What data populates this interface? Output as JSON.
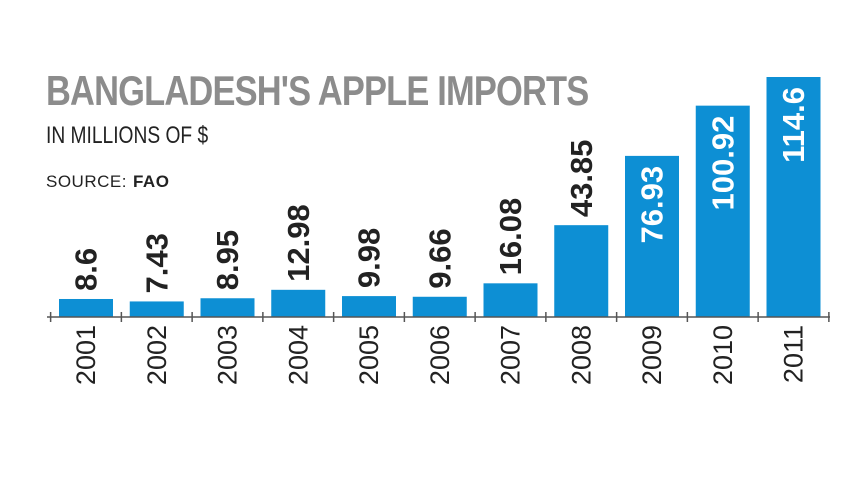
{
  "header": {
    "title": "BANGLADESH'S APPLE IMPORTS",
    "subtitle": "IN MILLIONS OF $",
    "source_label": "SOURCE:",
    "source_value": "FAO"
  },
  "colors": {
    "bar": "#0d8fd4",
    "label_dark": "#222222",
    "label_light": "#ffffff",
    "axis": "#555555",
    "title": "#8c8c8c"
  },
  "chart_data": {
    "type": "bar",
    "title": "BANGLADESH'S APPLE IMPORTS",
    "subtitle": "IN MILLIONS OF $",
    "source": "FAO",
    "categories": [
      "2001",
      "2002",
      "2003",
      "2004",
      "2005",
      "2006",
      "2007",
      "2008",
      "2009",
      "2010",
      "2011"
    ],
    "values": [
      8.6,
      7.43,
      8.95,
      12.98,
      9.98,
      9.66,
      16.08,
      43.85,
      76.93,
      100.92,
      114.6
    ],
    "value_labels": [
      "8.6",
      "7.43",
      "8.95",
      "12.98",
      "9.98",
      "9.66",
      "16.08",
      "43.85",
      "76.93",
      "100.92",
      "114.6"
    ],
    "label_inside": [
      false,
      false,
      false,
      false,
      false,
      false,
      false,
      false,
      true,
      true,
      true
    ],
    "xlabel": "",
    "ylabel": "",
    "ylim": [
      0,
      114.6
    ],
    "grid": false,
    "legend": "none",
    "tick_label_orientation": "vertical",
    "value_label_orientation": "vertical"
  }
}
